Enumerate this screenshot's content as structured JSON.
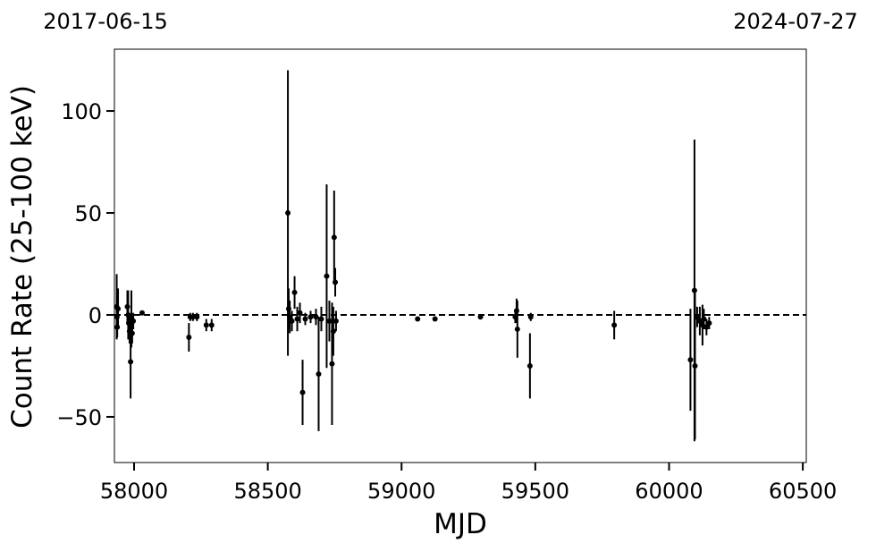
{
  "chart_data": {
    "type": "errorbar",
    "top_left_label": "2017-06-15",
    "top_right_label": "2024-07-27",
    "x_label": "MJD",
    "y_label": "Count Rate (25-100 keV)",
    "xlim": [
      57926.5,
      60513
    ],
    "ylim": [
      -72.4,
      130.3
    ],
    "xticks": [
      58000,
      58500,
      59000,
      59500,
      60000,
      60500
    ],
    "yticks": [
      {
        "value": -50,
        "label": "−50"
      },
      0,
      50,
      100
    ],
    "hline": 0,
    "color": "#000000",
    "x": [
      57935,
      57936,
      57937,
      57940,
      57975,
      57978,
      57980,
      57983,
      57987,
      57990,
      57993,
      57997,
      58030,
      58205,
      58210,
      58220,
      58235,
      58270,
      58290,
      58575,
      58578,
      58582,
      58590,
      58600,
      58610,
      58620,
      58630,
      58640,
      58660,
      58680,
      58690,
      58700,
      58720,
      58730,
      58740,
      58745,
      58748,
      58752,
      58755,
      59060,
      59125,
      59295,
      59425,
      59430,
      59433,
      59480,
      59483,
      59795,
      60080,
      60095,
      60097,
      60105,
      60115,
      60125,
      60130,
      60140,
      60150
    ],
    "values": [
      4,
      -1,
      -6,
      3,
      4,
      0,
      -4,
      -8,
      -23,
      -2,
      -9,
      -3,
      1,
      -11,
      -1,
      -1,
      -1,
      -5,
      -5,
      50,
      3,
      -1,
      -3,
      11,
      -2,
      1,
      -38,
      -2,
      -1,
      -1,
      -29,
      -2,
      19,
      -3,
      -24,
      -8,
      38,
      16,
      -3,
      -2,
      -2,
      -1,
      -1,
      2,
      -7,
      -25,
      -1,
      -5,
      -22,
      12,
      -25,
      -1,
      -3,
      -5,
      -2,
      -6,
      -4
    ],
    "errors": [
      16,
      10,
      5,
      10,
      8,
      12,
      5,
      6,
      18,
      14,
      5,
      4,
      1,
      7,
      2,
      2,
      2,
      3,
      3,
      70,
      10,
      8,
      5,
      8,
      6,
      5,
      16,
      3,
      3,
      4,
      28,
      6,
      45,
      10,
      30,
      12,
      23,
      7,
      5,
      1,
      1,
      1,
      3,
      6,
      14,
      16,
      2,
      7,
      25,
      74,
      36,
      5,
      7,
      10,
      5,
      4,
      3
    ]
  }
}
